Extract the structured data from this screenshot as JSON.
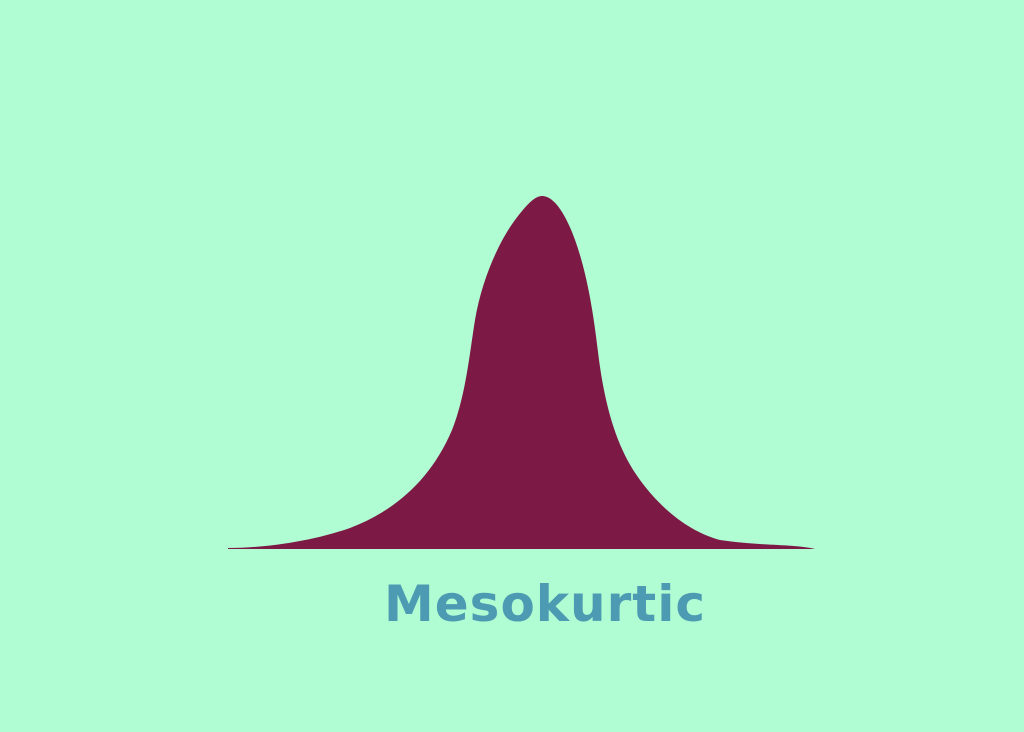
{
  "diagram": {
    "label": "Mesokurtic",
    "curve_color": "#7c1a45",
    "background_color": "#b1fdd3",
    "label_color": "#4d9bb2"
  }
}
